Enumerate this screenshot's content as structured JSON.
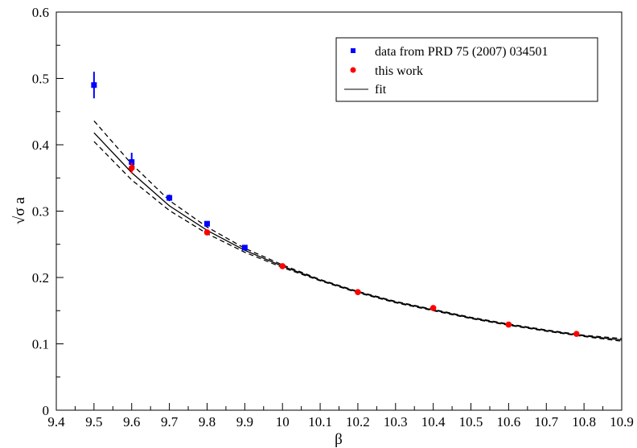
{
  "chart_data": {
    "type": "scatter",
    "title": "",
    "xlabel": "β",
    "ylabel": "√σ a",
    "xlim": [
      9.4,
      10.9
    ],
    "ylim": [
      0,
      0.6
    ],
    "x_ticks": [
      "9.4",
      "9.5",
      "9.6",
      "9.7",
      "9.8",
      "9.9",
      "10",
      "10.1",
      "10.2",
      "10.3",
      "10.4",
      "10.5",
      "10.6",
      "10.7",
      "10.8",
      "10.9"
    ],
    "y_ticks": [
      "0",
      "0.1",
      "0.2",
      "0.3",
      "0.4",
      "0.5",
      "0.6"
    ],
    "grid": false,
    "legend_position": "top-right",
    "series": [
      {
        "name": "data from PRD 75 (2007) 034501",
        "marker": "square",
        "color": "#0000ff",
        "points": [
          {
            "x": 9.5,
            "y": 0.49,
            "err": 0.02
          },
          {
            "x": 9.6,
            "y": 0.374,
            "err": 0.014
          },
          {
            "x": 9.7,
            "y": 0.32,
            "err": 0.005
          },
          {
            "x": 9.8,
            "y": 0.281,
            "err": 0.003
          },
          {
            "x": 9.9,
            "y": 0.245,
            "err": 0.003
          }
        ]
      },
      {
        "name": "this work",
        "marker": "circle",
        "color": "#ff0000",
        "points": [
          {
            "x": 9.6,
            "y": 0.365,
            "err": 0.008
          },
          {
            "x": 9.8,
            "y": 0.268,
            "err": 0.002
          },
          {
            "x": 10.0,
            "y": 0.217,
            "err": 0.002
          },
          {
            "x": 10.2,
            "y": 0.178,
            "err": 0.001
          },
          {
            "x": 10.4,
            "y": 0.154,
            "err": 0.001
          },
          {
            "x": 10.6,
            "y": 0.129,
            "err": 0.001
          },
          {
            "x": 10.78,
            "y": 0.115,
            "err": 0.001
          }
        ]
      },
      {
        "name": "fit",
        "line": "solid",
        "color": "#000000",
        "x": [
          9.5,
          9.6,
          9.7,
          9.8,
          9.9,
          10.0,
          10.1,
          10.2,
          10.3,
          10.4,
          10.5,
          10.6,
          10.7,
          10.8,
          10.9
        ],
        "y": [
          0.418,
          0.358,
          0.308,
          0.271,
          0.241,
          0.217,
          0.196,
          0.178,
          0.163,
          0.151,
          0.139,
          0.129,
          0.12,
          0.112,
          0.106
        ],
        "y_upper": [
          0.436,
          0.371,
          0.316,
          0.276,
          0.244,
          0.219,
          0.197,
          0.179,
          0.164,
          0.152,
          0.14,
          0.13,
          0.121,
          0.113,
          0.108
        ],
        "y_lower": [
          0.405,
          0.347,
          0.301,
          0.266,
          0.238,
          0.215,
          0.195,
          0.177,
          0.162,
          0.15,
          0.138,
          0.128,
          0.119,
          0.111,
          0.104
        ]
      }
    ]
  }
}
